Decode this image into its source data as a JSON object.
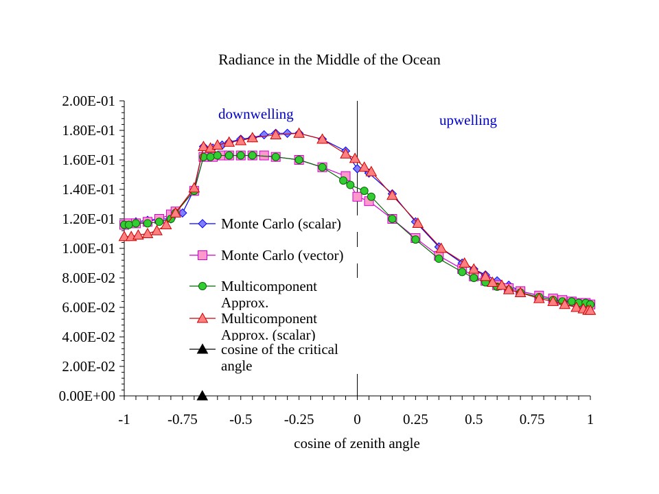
{
  "chart_data": {
    "type": "line",
    "title": "Radiance in the Middle of the Ocean",
    "xlabel": "cosine of zenith angle",
    "ylabel": "",
    "xlim": [
      -1,
      1
    ],
    "ylim": [
      0,
      0.2
    ],
    "x_ticks": [
      "-1",
      "-0.75",
      "-0.5",
      "-0.25",
      "0",
      "0.25",
      "0.5",
      "0.75",
      "1"
    ],
    "y_ticks": [
      "0.00E+00",
      "2.00E-02",
      "4.00E-02",
      "6.00E-02",
      "8.00E-02",
      "1.00E-01",
      "1.20E-01",
      "1.40E-01",
      "1.60E-01",
      "1.80E-01",
      "2.00E-01"
    ],
    "annotations": [
      {
        "text": "downwelling",
        "color": "#0000cc"
      },
      {
        "text": "upwelling",
        "color": "#0000cc"
      }
    ],
    "vertical_line_x": 0,
    "legend_position": "center-left",
    "series": [
      {
        "name": "Monte Carlo (scalar)",
        "color": "#0000ff",
        "marker": "diamond",
        "fill": "#7f7fff",
        "x": [
          -1,
          -0.98,
          -0.95,
          -0.9,
          -0.85,
          -0.8,
          -0.75,
          -0.7,
          -0.66,
          -0.62,
          -0.58,
          -0.55,
          -0.5,
          -0.45,
          -0.4,
          -0.35,
          -0.3,
          -0.25,
          -0.15,
          -0.05,
          0,
          0.05,
          0.15,
          0.25,
          0.35,
          0.45,
          0.5,
          0.55,
          0.6,
          0.65,
          0.7,
          0.78,
          0.84,
          0.88,
          0.92,
          0.95,
          0.98,
          1
        ],
        "y": [
          0.116,
          0.117,
          0.118,
          0.119,
          0.12,
          0.12,
          0.124,
          0.14,
          0.169,
          0.168,
          0.17,
          0.172,
          0.174,
          0.175,
          0.177,
          0.178,
          0.178,
          0.178,
          0.174,
          0.166,
          0.154,
          0.151,
          0.137,
          0.118,
          0.101,
          0.09,
          0.086,
          0.082,
          0.078,
          0.075,
          0.071,
          0.068,
          0.066,
          0.065,
          0.064,
          0.063,
          0.063,
          0.062
        ]
      },
      {
        "name": "Monte Carlo (vector)",
        "color": "#cc00cc",
        "marker": "square",
        "fill": "#ff99cc",
        "x": [
          -1,
          -0.98,
          -0.95,
          -0.9,
          -0.85,
          -0.8,
          -0.78,
          -0.7,
          -0.66,
          -0.62,
          -0.58,
          -0.55,
          -0.5,
          -0.45,
          -0.4,
          -0.35,
          -0.25,
          -0.15,
          -0.05,
          0,
          0.05,
          0.15,
          0.25,
          0.35,
          0.45,
          0.5,
          0.55,
          0.6,
          0.65,
          0.7,
          0.78,
          0.84,
          0.88,
          0.92,
          0.95,
          0.98,
          1
        ],
        "y": [
          0.116,
          0.117,
          0.117,
          0.118,
          0.12,
          0.123,
          0.125,
          0.139,
          0.162,
          0.162,
          0.163,
          0.163,
          0.163,
          0.163,
          0.163,
          0.162,
          0.16,
          0.155,
          0.149,
          0.135,
          0.132,
          0.12,
          0.107,
          0.095,
          0.086,
          0.081,
          0.078,
          0.075,
          0.073,
          0.071,
          0.068,
          0.066,
          0.065,
          0.064,
          0.063,
          0.063,
          0.062
        ]
      },
      {
        "name": "Multicomponent Approx.",
        "color": "#006600",
        "marker": "circle",
        "fill": "#33cc33",
        "x": [
          -1,
          -0.98,
          -0.95,
          -0.9,
          -0.85,
          -0.8,
          -0.78,
          -0.7,
          -0.66,
          -0.63,
          -0.6,
          -0.55,
          -0.5,
          -0.45,
          -0.35,
          -0.25,
          -0.15,
          -0.06,
          -0.03,
          0.03,
          0.06,
          0.15,
          0.25,
          0.35,
          0.45,
          0.5,
          0.55,
          0.6,
          0.65,
          0.7,
          0.78,
          0.84,
          0.88,
          0.92,
          0.95,
          0.98,
          1
        ],
        "y": [
          0.116,
          0.116,
          0.117,
          0.117,
          0.118,
          0.12,
          0.124,
          0.139,
          0.162,
          0.162,
          0.163,
          0.163,
          0.163,
          0.163,
          0.162,
          0.16,
          0.155,
          0.146,
          0.143,
          0.139,
          0.135,
          0.12,
          0.106,
          0.093,
          0.084,
          0.08,
          0.077,
          0.074,
          0.072,
          0.07,
          0.067,
          0.065,
          0.064,
          0.064,
          0.063,
          0.063,
          0.062
        ]
      },
      {
        "name": "Multicomponent Approx. (scalar)",
        "color": "#cc0000",
        "marker": "triangle",
        "fill": "#ff8080",
        "x": [
          -1,
          -0.97,
          -0.94,
          -0.9,
          -0.86,
          -0.82,
          -0.78,
          -0.7,
          -0.66,
          -0.63,
          -0.6,
          -0.55,
          -0.5,
          -0.45,
          -0.35,
          -0.25,
          -0.15,
          -0.05,
          -0.01,
          0.03,
          0.06,
          0.15,
          0.26,
          0.36,
          0.46,
          0.5,
          0.55,
          0.58,
          0.62,
          0.65,
          0.7,
          0.78,
          0.84,
          0.89,
          0.94,
          0.97,
          0.99,
          1
        ],
        "y": [
          0.108,
          0.108,
          0.109,
          0.11,
          0.112,
          0.116,
          0.124,
          0.141,
          0.169,
          0.168,
          0.17,
          0.172,
          0.173,
          0.175,
          0.177,
          0.178,
          0.174,
          0.164,
          0.161,
          0.155,
          0.152,
          0.136,
          0.117,
          0.1,
          0.09,
          0.086,
          0.081,
          0.077,
          0.075,
          0.072,
          0.07,
          0.066,
          0.064,
          0.062,
          0.06,
          0.059,
          0.058,
          0.058
        ]
      },
      {
        "name": "cosine of the critical angle",
        "color": "#000000",
        "marker": "triangle",
        "fill": "#000000",
        "x": [
          -0.665
        ],
        "y": [
          0
        ]
      }
    ]
  },
  "legend_labels": [
    "Monte Carlo (scalar)",
    "Monte Carlo (vector)",
    "Multicomponent Approx.",
    "Multicomponent Approx. (scalar)",
    "cosine of the critical angle"
  ]
}
